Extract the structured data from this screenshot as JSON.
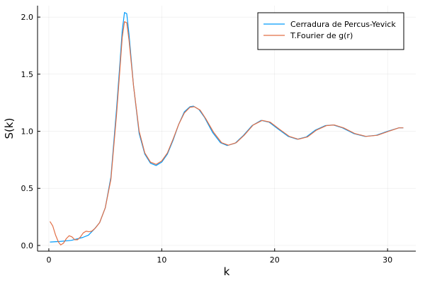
{
  "chart_data": {
    "type": "line",
    "title": "",
    "xlabel": "k",
    "ylabel": "S(k)",
    "xlim": [
      -1.0,
      32.5
    ],
    "ylim": [
      -0.05,
      2.1
    ],
    "x_ticks": [
      0,
      10,
      20,
      30
    ],
    "x_tick_labels": [
      "0",
      "10",
      "20",
      "30"
    ],
    "y_ticks": [
      0.0,
      0.5,
      1.0,
      1.5,
      2.0
    ],
    "y_tick_labels": [
      "0.0",
      "0.5",
      "1.0",
      "1.5",
      "2.0"
    ],
    "grid": true,
    "legend_position": "top-right",
    "series": [
      {
        "name": "Cerradura de Percus-Yevick",
        "color": "#009AFA",
        "points": [
          [
            0.1,
            0.03
          ],
          [
            1.0,
            0.035
          ],
          [
            2.0,
            0.045
          ],
          [
            3.0,
            0.07
          ],
          [
            3.5,
            0.09
          ],
          [
            4.0,
            0.14
          ],
          [
            4.5,
            0.2
          ],
          [
            5.0,
            0.33
          ],
          [
            5.5,
            0.6
          ],
          [
            6.0,
            1.2
          ],
          [
            6.3,
            1.6
          ],
          [
            6.5,
            1.88
          ],
          [
            6.7,
            2.04
          ],
          [
            6.9,
            2.03
          ],
          [
            7.1,
            1.85
          ],
          [
            7.5,
            1.4
          ],
          [
            8.0,
            0.98
          ],
          [
            8.5,
            0.8
          ],
          [
            9.0,
            0.72
          ],
          [
            9.5,
            0.7
          ],
          [
            10.0,
            0.73
          ],
          [
            10.5,
            0.8
          ],
          [
            11.0,
            0.92
          ],
          [
            11.5,
            1.06
          ],
          [
            12.0,
            1.17
          ],
          [
            12.5,
            1.215
          ],
          [
            12.8,
            1.22
          ],
          [
            13.3,
            1.19
          ],
          [
            13.8,
            1.12
          ],
          [
            14.5,
            0.99
          ],
          [
            15.2,
            0.9
          ],
          [
            15.8,
            0.875
          ],
          [
            16.5,
            0.895
          ],
          [
            17.2,
            0.96
          ],
          [
            18.0,
            1.05
          ],
          [
            18.8,
            1.095
          ],
          [
            19.5,
            1.08
          ],
          [
            20.3,
            1.02
          ],
          [
            21.2,
            0.955
          ],
          [
            22.0,
            0.93
          ],
          [
            22.8,
            0.95
          ],
          [
            23.6,
            1.01
          ],
          [
            24.5,
            1.05
          ],
          [
            25.2,
            1.055
          ],
          [
            26.0,
            1.03
          ],
          [
            27.0,
            0.98
          ],
          [
            28.0,
            0.955
          ],
          [
            29.0,
            0.965
          ],
          [
            30.0,
            1.0
          ],
          [
            31.0,
            1.03
          ],
          [
            31.4,
            1.03
          ]
        ]
      },
      {
        "name": "T.Fourier de g(r)",
        "color": "#E26F46",
        "points": [
          [
            0.1,
            0.21
          ],
          [
            0.35,
            0.17
          ],
          [
            0.6,
            0.09
          ],
          [
            0.85,
            0.03
          ],
          [
            1.05,
            0.005
          ],
          [
            1.3,
            0.02
          ],
          [
            1.55,
            0.06
          ],
          [
            1.8,
            0.085
          ],
          [
            2.05,
            0.075
          ],
          [
            2.3,
            0.05
          ],
          [
            2.55,
            0.05
          ],
          [
            2.8,
            0.075
          ],
          [
            3.05,
            0.11
          ],
          [
            3.3,
            0.125
          ],
          [
            3.55,
            0.12
          ],
          [
            3.8,
            0.125
          ],
          [
            4.1,
            0.15
          ],
          [
            4.5,
            0.2
          ],
          [
            5.0,
            0.33
          ],
          [
            5.5,
            0.58
          ],
          [
            6.0,
            1.15
          ],
          [
            6.3,
            1.55
          ],
          [
            6.5,
            1.82
          ],
          [
            6.7,
            1.96
          ],
          [
            6.9,
            1.95
          ],
          [
            7.1,
            1.8
          ],
          [
            7.5,
            1.4
          ],
          [
            8.0,
            1.0
          ],
          [
            8.5,
            0.81
          ],
          [
            9.0,
            0.73
          ],
          [
            9.5,
            0.71
          ],
          [
            10.0,
            0.74
          ],
          [
            10.5,
            0.81
          ],
          [
            11.0,
            0.93
          ],
          [
            11.5,
            1.06
          ],
          [
            12.0,
            1.16
          ],
          [
            12.5,
            1.21
          ],
          [
            12.9,
            1.215
          ],
          [
            13.4,
            1.185
          ],
          [
            13.9,
            1.11
          ],
          [
            14.6,
            0.99
          ],
          [
            15.3,
            0.9
          ],
          [
            15.9,
            0.878
          ],
          [
            16.6,
            0.9
          ],
          [
            17.3,
            0.965
          ],
          [
            18.1,
            1.055
          ],
          [
            18.9,
            1.095
          ],
          [
            19.6,
            1.08
          ],
          [
            20.4,
            1.02
          ],
          [
            21.3,
            0.955
          ],
          [
            22.1,
            0.93
          ],
          [
            22.9,
            0.95
          ],
          [
            23.7,
            1.01
          ],
          [
            24.6,
            1.05
          ],
          [
            25.3,
            1.055
          ],
          [
            26.1,
            1.03
          ],
          [
            27.1,
            0.98
          ],
          [
            28.1,
            0.955
          ],
          [
            29.1,
            0.965
          ],
          [
            30.1,
            1.0
          ],
          [
            31.0,
            1.03
          ],
          [
            31.4,
            1.03
          ]
        ]
      }
    ]
  }
}
